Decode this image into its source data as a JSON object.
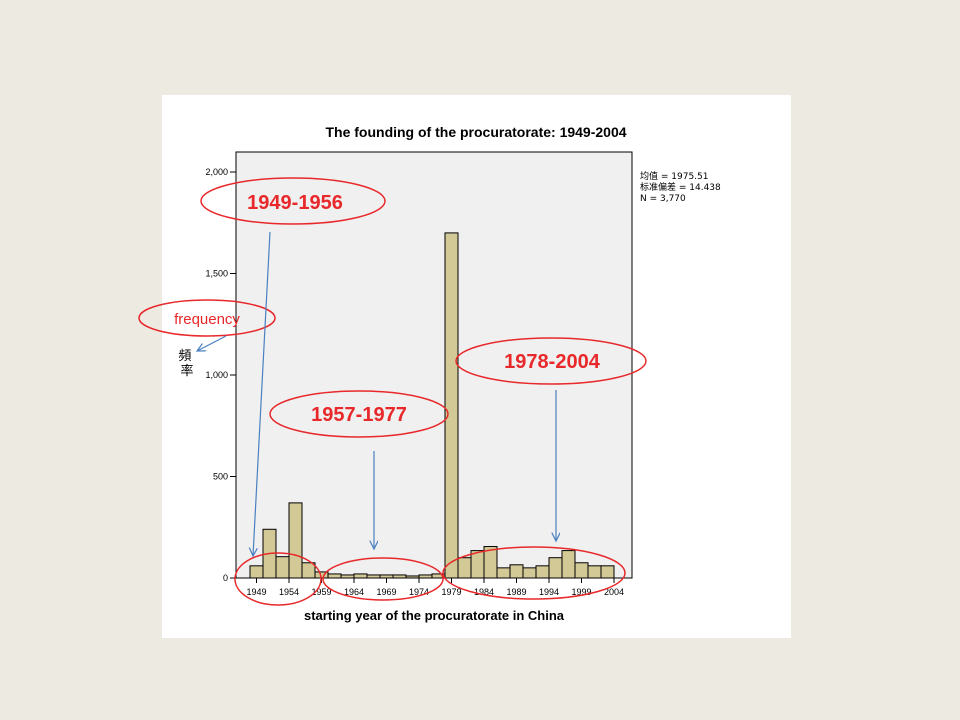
{
  "chart_data": {
    "type": "bar",
    "title": "The founding of the procuratorate: 1949-2004",
    "xlabel": "starting year of the procuratorate in China",
    "ylabel": "頻率",
    "ylim": [
      0,
      2000
    ],
    "yticks": [
      "0",
      "500",
      "1,000",
      "1,500",
      "2,000"
    ],
    "ytick_values": [
      0,
      500,
      1000,
      1500,
      2000
    ],
    "xticks": [
      "1949",
      "1954",
      "1959",
      "1964",
      "1969",
      "1974",
      "1979",
      "1984",
      "1989",
      "1994",
      "1999",
      "2004"
    ],
    "xtick_values": [
      1949,
      1954,
      1959,
      1964,
      1969,
      1974,
      1979,
      1984,
      1989,
      1994,
      1999,
      2004
    ],
    "bin_width_years": 2,
    "bin_starts": [
      1948,
      1950,
      1952,
      1954,
      1956,
      1958,
      1960,
      1962,
      1964,
      1966,
      1968,
      1970,
      1972,
      1974,
      1976,
      1978,
      1980,
      1982,
      1984,
      1986,
      1988,
      1990,
      1992,
      1994,
      1996,
      1998,
      2000,
      2002
    ],
    "values": [
      60,
      240,
      105,
      370,
      75,
      30,
      20,
      15,
      20,
      15,
      15,
      15,
      10,
      15,
      20,
      1700,
      100,
      135,
      155,
      50,
      65,
      50,
      60,
      100,
      135,
      75,
      60,
      60
    ],
    "grid": false,
    "bar_color": "#d3c997",
    "plot_background": "#f0f0f0",
    "stats": {
      "mean_label": "均值 = 1975.51",
      "sd_label": "标准偏差 = 14.438",
      "n_label": "N = 3,770"
    }
  },
  "annotations": {
    "period1": "1949-1956",
    "period2": "1957-1977",
    "period3": "1978-2004",
    "frequency": "frequency",
    "color": "#e8282a",
    "arrow_color": "#4a7fc1"
  }
}
